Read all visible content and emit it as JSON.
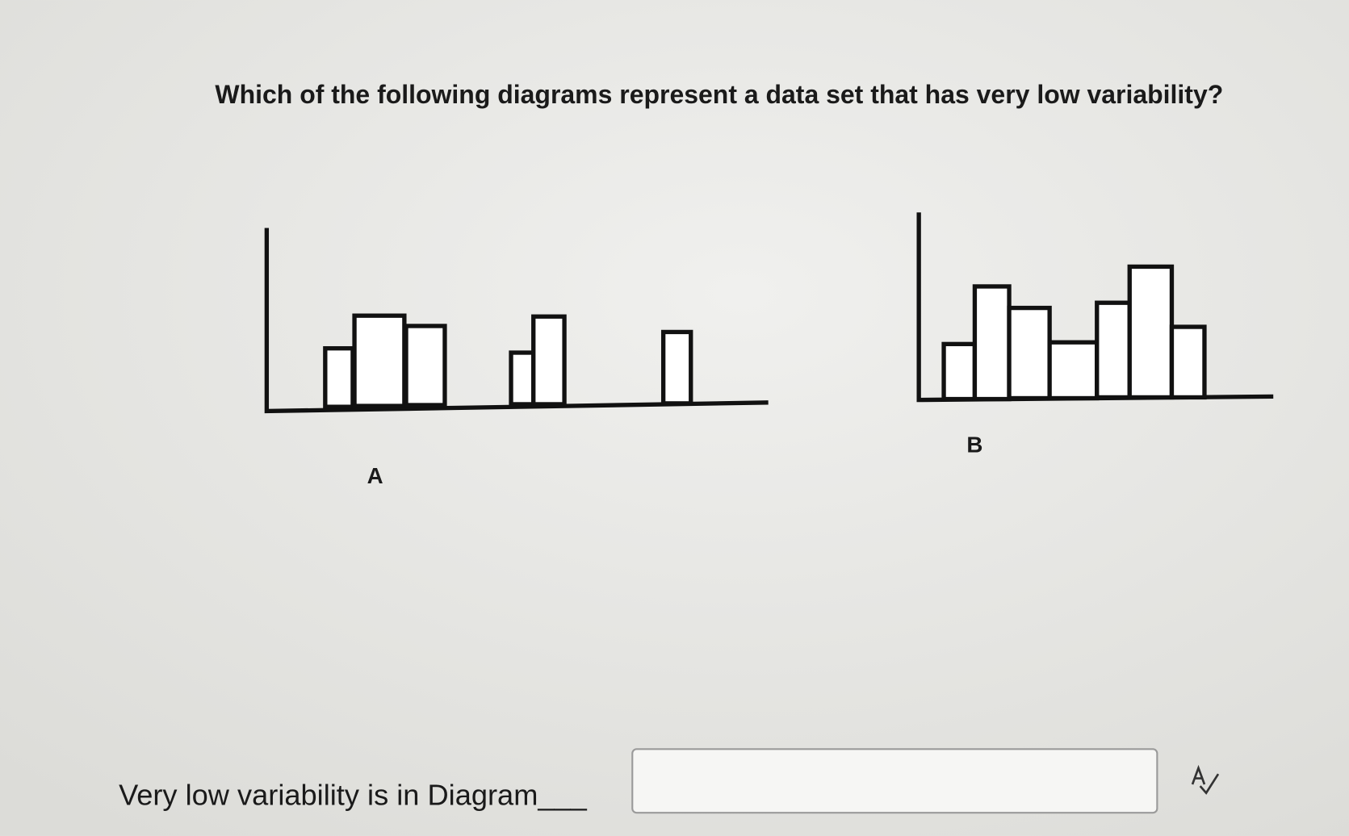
{
  "question": "Which of the following diagrams represent a data set that has very low variability?",
  "diagrams": [
    {
      "label": "A"
    },
    {
      "label": "B"
    }
  ],
  "answer": {
    "prompt": "Very low variability is in Diagram___"
  }
}
